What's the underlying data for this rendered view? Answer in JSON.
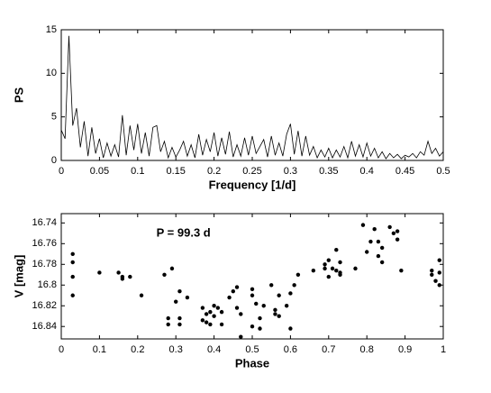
{
  "chart_data": [
    {
      "type": "line",
      "xlabel": "Frequency [1/d]",
      "ylabel": "PS",
      "color": "#000000",
      "xlim": [
        0,
        0.5
      ],
      "ylim": [
        0,
        15
      ],
      "xticks": [
        0,
        0.05,
        0.1,
        0.15,
        0.2,
        0.25,
        0.3,
        0.35,
        0.4,
        0.45,
        0.5
      ],
      "yticks": [
        0,
        5,
        10,
        15
      ],
      "x": [
        0,
        0.005,
        0.01,
        0.015,
        0.02,
        0.025,
        0.03,
        0.035,
        0.04,
        0.045,
        0.05,
        0.055,
        0.06,
        0.065,
        0.07,
        0.075,
        0.08,
        0.085,
        0.09,
        0.095,
        0.1,
        0.105,
        0.11,
        0.115,
        0.12,
        0.125,
        0.13,
        0.135,
        0.14,
        0.145,
        0.15,
        0.155,
        0.16,
        0.165,
        0.17,
        0.175,
        0.18,
        0.185,
        0.19,
        0.195,
        0.2,
        0.205,
        0.21,
        0.215,
        0.22,
        0.225,
        0.23,
        0.235,
        0.24,
        0.245,
        0.25,
        0.255,
        0.26,
        0.265,
        0.27,
        0.275,
        0.28,
        0.285,
        0.29,
        0.295,
        0.3,
        0.305,
        0.31,
        0.315,
        0.32,
        0.325,
        0.33,
        0.335,
        0.34,
        0.345,
        0.35,
        0.355,
        0.36,
        0.365,
        0.37,
        0.375,
        0.38,
        0.385,
        0.39,
        0.395,
        0.4,
        0.405,
        0.41,
        0.415,
        0.42,
        0.425,
        0.43,
        0.435,
        0.44,
        0.445,
        0.45,
        0.455,
        0.46,
        0.465,
        0.47,
        0.475,
        0.48,
        0.485,
        0.49,
        0.495,
        0.5
      ],
      "values": [
        3.5,
        2.5,
        14.3,
        4,
        6,
        1.5,
        4.5,
        0.5,
        3.8,
        0.8,
        2.5,
        0.3,
        2,
        0.5,
        1.8,
        0.4,
        5.2,
        0.6,
        4,
        1.2,
        4.2,
        0.8,
        3.2,
        0.5,
        3.8,
        4,
        1,
        2.2,
        0.3,
        1.5,
        0.4,
        1.2,
        2.2,
        0.5,
        1.8,
        0.3,
        3,
        0.6,
        2.4,
        1,
        3.2,
        0.5,
        2.6,
        0.7,
        3.3,
        0.4,
        1.8,
        0.5,
        2.6,
        0.6,
        2.8,
        0.8,
        1.6,
        2.4,
        0.4,
        2.8,
        0.6,
        2,
        0.5,
        3,
        4.2,
        0.7,
        3.4,
        0.5,
        2.8,
        0.6,
        1.6,
        0.3,
        1.2,
        0.4,
        1.4,
        0.3,
        1.2,
        0.4,
        1.6,
        0.3,
        2.2,
        0.5,
        1.8,
        0.4,
        2,
        0.5,
        1.4,
        0.3,
        1,
        0.2,
        0.8,
        0.3,
        0.7,
        0.2,
        0.6,
        0.4,
        0.8,
        0.3,
        1,
        0.6,
        2.2,
        0.8,
        1.4,
        0.5,
        1
      ]
    },
    {
      "type": "scatter",
      "xlabel": "Phase",
      "ylabel": "V [mag]",
      "annotation": "P = 99.3 d",
      "color": "#000000",
      "xlim": [
        0,
        1
      ],
      "ylim": [
        16.852,
        16.731
      ],
      "xticks": [
        0,
        0.1,
        0.2,
        0.3,
        0.4,
        0.5,
        0.6,
        0.7,
        0.8,
        0.9,
        1
      ],
      "yticks": [
        16.74,
        16.76,
        16.78,
        16.8,
        16.82,
        16.84
      ],
      "x": [
        0.03,
        0.03,
        0.03,
        0.03,
        0.1,
        0.15,
        0.16,
        0.16,
        0.18,
        0.21,
        0.27,
        0.29,
        0.28,
        0.28,
        0.3,
        0.31,
        0.31,
        0.31,
        0.33,
        0.37,
        0.38,
        0.37,
        0.38,
        0.39,
        0.39,
        0.4,
        0.4,
        0.41,
        0.42,
        0.42,
        0.44,
        0.45,
        0.46,
        0.46,
        0.47,
        0.47,
        0.5,
        0.5,
        0.5,
        0.51,
        0.52,
        0.52,
        0.53,
        0.55,
        0.56,
        0.56,
        0.57,
        0.57,
        0.6,
        0.59,
        0.6,
        0.61,
        0.62,
        0.66,
        0.69,
        0.69,
        0.7,
        0.7,
        0.71,
        0.72,
        0.72,
        0.73,
        0.73,
        0.73,
        0.77,
        0.79,
        0.8,
        0.81,
        0.82,
        0.83,
        0.83,
        0.84,
        0.84,
        0.86,
        0.87,
        0.88,
        0.88,
        0.89,
        0.97,
        0.97,
        0.98,
        0.99,
        0.99,
        0.99
      ],
      "values": [
        16.77,
        16.778,
        16.792,
        16.81,
        16.788,
        16.788,
        16.792,
        16.794,
        16.792,
        16.81,
        16.79,
        16.784,
        16.832,
        16.838,
        16.816,
        16.806,
        16.832,
        16.838,
        16.812,
        16.822,
        16.828,
        16.834,
        16.836,
        16.826,
        16.838,
        16.82,
        16.83,
        16.822,
        16.838,
        16.826,
        16.812,
        16.806,
        16.802,
        16.822,
        16.828,
        16.85,
        16.804,
        16.81,
        16.84,
        16.818,
        16.832,
        16.842,
        16.82,
        16.8,
        16.824,
        16.828,
        16.81,
        16.83,
        16.808,
        16.82,
        16.842,
        16.8,
        16.79,
        16.786,
        16.784,
        16.78,
        16.792,
        16.776,
        16.784,
        16.766,
        16.786,
        16.79,
        16.778,
        16.788,
        16.784,
        16.742,
        16.768,
        16.758,
        16.746,
        16.772,
        16.758,
        16.764,
        16.778,
        16.744,
        16.75,
        16.748,
        16.756,
        16.786,
        16.79,
        16.786,
        16.796,
        16.8,
        16.776,
        16.788
      ]
    }
  ]
}
